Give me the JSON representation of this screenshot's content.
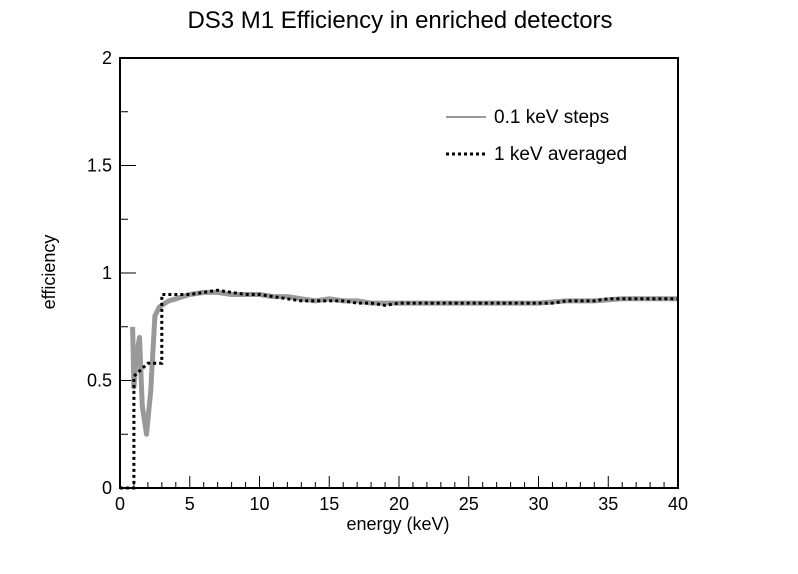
{
  "chart_data": {
    "type": "line",
    "title": "DS3 M1 Efficiency in enriched detectors",
    "xlabel": "energy (keV)",
    "ylabel": "efficiency",
    "xlim": [
      0,
      40
    ],
    "ylim": [
      0,
      2
    ],
    "xticks": [
      0,
      5,
      10,
      15,
      20,
      25,
      30,
      35,
      40
    ],
    "yticks": [
      0,
      0.5,
      1,
      1.5,
      2
    ],
    "ytick_labels": [
      "0",
      "0.5",
      "1",
      "1.5",
      "2"
    ],
    "grid": false,
    "legend_position": "top-right",
    "series": [
      {
        "name": "0.1 keV steps",
        "style": "solid",
        "color": "#999999",
        "x": [
          0.9,
          1.0,
          1.1,
          1.2,
          1.4,
          1.6,
          1.9,
          2.2,
          2.5,
          2.8,
          3.0,
          3.5,
          4.0,
          4.5,
          5.0,
          6.0,
          7.0,
          8.0,
          9.0,
          10.0,
          11.0,
          12.0,
          13.0,
          14.0,
          15.0,
          16.0,
          17.0,
          18.0,
          19.0,
          20.0,
          22.0,
          24.0,
          26.0,
          28.0,
          30.0,
          32.0,
          34.0,
          36.0,
          38.0,
          40.0
        ],
        "y": [
          0.75,
          0.47,
          0.55,
          0.62,
          0.7,
          0.38,
          0.25,
          0.45,
          0.8,
          0.84,
          0.85,
          0.87,
          0.88,
          0.89,
          0.9,
          0.91,
          0.91,
          0.9,
          0.9,
          0.9,
          0.89,
          0.89,
          0.88,
          0.87,
          0.88,
          0.87,
          0.87,
          0.86,
          0.86,
          0.86,
          0.86,
          0.86,
          0.86,
          0.86,
          0.86,
          0.87,
          0.87,
          0.88,
          0.88,
          0.88
        ]
      },
      {
        "name": "1 keV averaged",
        "style": "dotted",
        "color": "#000000",
        "x": [
          0,
          1,
          1,
          2,
          2,
          3,
          3,
          4,
          5,
          6,
          7,
          8,
          9,
          10,
          11,
          12,
          13,
          14,
          15,
          16,
          17,
          18,
          19,
          20,
          21,
          22,
          23,
          24,
          25,
          26,
          27,
          28,
          29,
          30,
          31,
          32,
          33,
          34,
          35,
          36,
          37,
          38,
          39,
          40
        ],
        "y": [
          0,
          0,
          0.52,
          0.58,
          0.58,
          0.58,
          0.9,
          0.9,
          0.9,
          0.91,
          0.92,
          0.91,
          0.9,
          0.9,
          0.89,
          0.88,
          0.87,
          0.87,
          0.87,
          0.87,
          0.86,
          0.86,
          0.85,
          0.86,
          0.86,
          0.86,
          0.86,
          0.86,
          0.86,
          0.86,
          0.86,
          0.86,
          0.86,
          0.86,
          0.86,
          0.87,
          0.87,
          0.87,
          0.88,
          0.88,
          0.88,
          0.88,
          0.88,
          0.88
        ]
      }
    ]
  }
}
